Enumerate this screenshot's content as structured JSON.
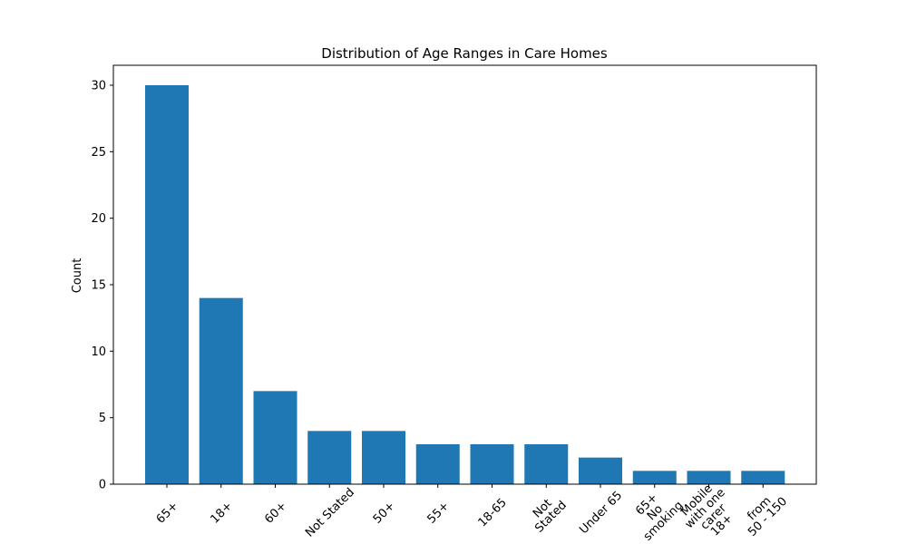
{
  "chart_data": {
    "type": "bar",
    "title": "Distribution of Age Ranges in Care Homes",
    "xlabel": "",
    "ylabel": "Count",
    "categories": [
      "65+",
      "18+",
      "60+",
      "Not Stated",
      "50+",
      "55+",
      "18-65",
      "Not\nStated",
      "Under 65",
      "65+\nNo\nsmoking",
      "Mobile\nwith one\ncarer\n18+",
      "from\n50 - 150"
    ],
    "values": [
      30,
      14,
      7,
      4,
      4,
      3,
      3,
      3,
      2,
      1,
      1,
      1
    ],
    "ylim": [
      0,
      31.5
    ],
    "yticks": [
      0,
      5,
      10,
      15,
      20,
      25,
      30
    ],
    "grid": false,
    "bar_color": "#1f77b4"
  }
}
